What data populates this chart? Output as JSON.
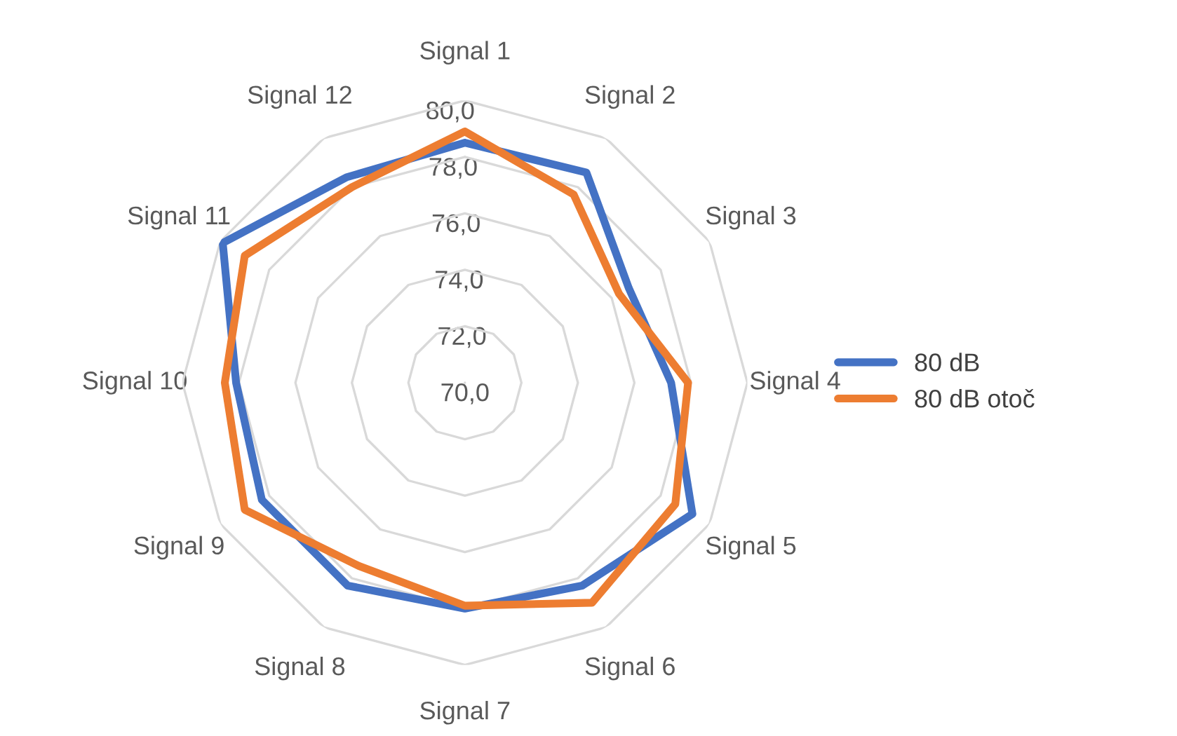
{
  "chart_data": {
    "type": "radar",
    "categories": [
      "Signal 1",
      "Signal 2",
      "Signal 3",
      "Signal 4",
      "Signal 5",
      "Signal 6",
      "Signal 7",
      "Signal 8",
      "Signal 9",
      "Signal 10",
      "Signal 11",
      "Signal 12"
    ],
    "series": [
      {
        "name": "80 dB",
        "color": "#4472c4",
        "values": [
          78.5,
          78.6,
          76.7,
          77.3,
          79.3,
          78.3,
          78.0,
          78.3,
          78.3,
          78.1,
          79.9,
          78.4
        ]
      },
      {
        "name": "80 dB otoč",
        "color": "#ed7d31",
        "values": [
          78.9,
          77.7,
          76.3,
          77.9,
          78.6,
          79.0,
          77.9,
          77.5,
          79.0,
          78.5,
          79.0,
          78.0
        ]
      }
    ],
    "ylim": [
      70,
      80
    ],
    "yticks": [
      {
        "value": 70,
        "label": "70,0"
      },
      {
        "value": 72,
        "label": "72,0"
      },
      {
        "value": 74,
        "label": "74,0"
      },
      {
        "value": 76,
        "label": "76,0"
      },
      {
        "value": 78,
        "label": "78,0"
      },
      {
        "value": 80,
        "label": "80,0"
      }
    ],
    "grid": true,
    "legend": "right",
    "marker": "none",
    "line_style": "solid"
  }
}
